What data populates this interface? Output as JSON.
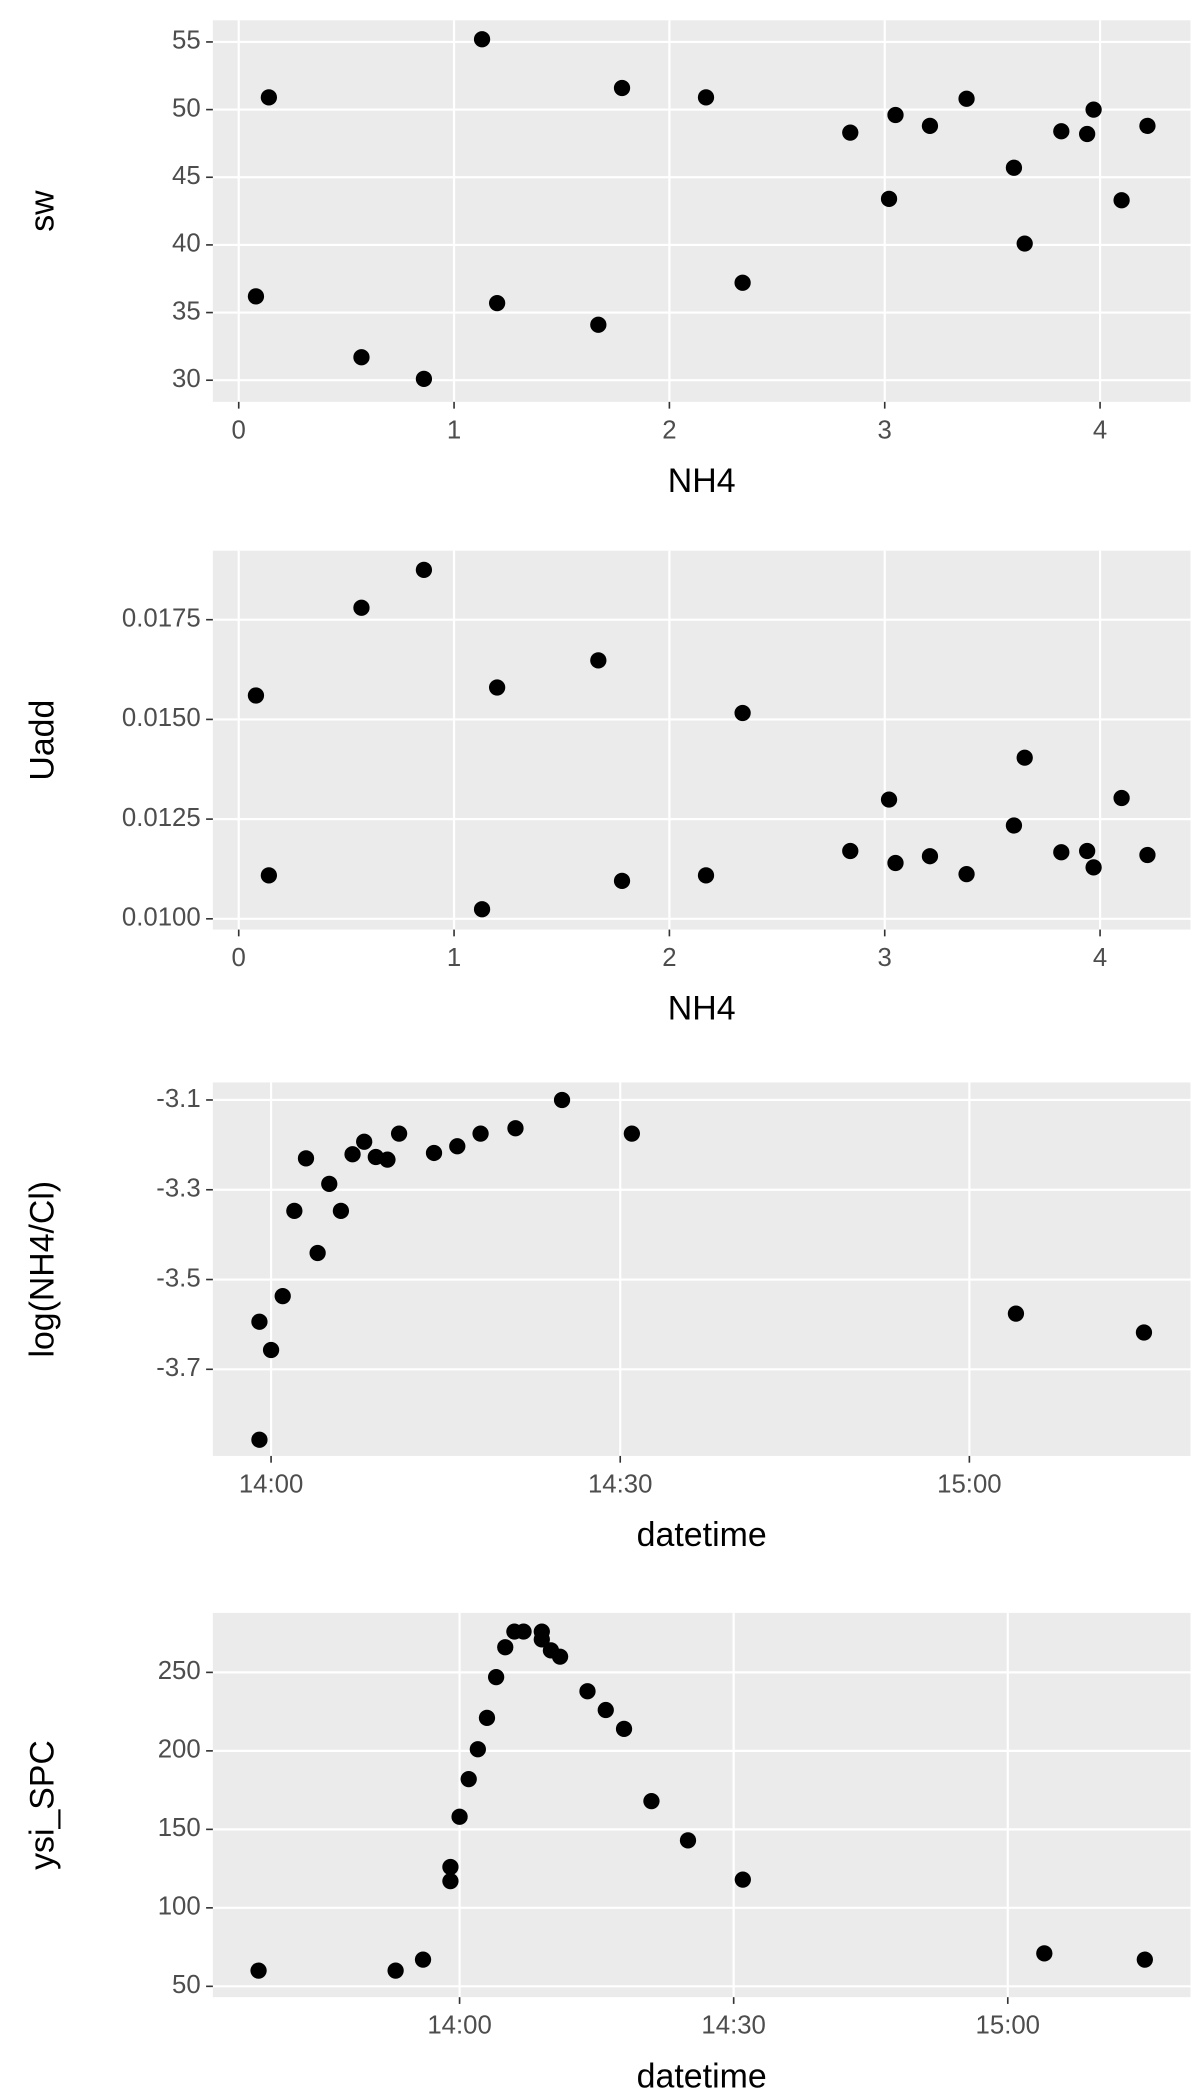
{
  "chart_data": [
    {
      "type": "scatter",
      "x_label": "NH4",
      "y_label": "sw",
      "grid": true,
      "color": "#000000",
      "x": [
        0.08,
        0.14,
        0.57,
        0.86,
        1.13,
        1.2,
        1.67,
        1.78,
        2.17,
        2.34,
        2.84,
        3.02,
        3.05,
        3.21,
        3.38,
        3.6,
        3.65,
        3.82,
        3.94,
        3.97,
        4.1,
        4.22
      ],
      "values": [
        36.2,
        50.9,
        31.7,
        30.1,
        55.2,
        35.7,
        34.1,
        51.6,
        50.9,
        37.2,
        48.3,
        43.4,
        49.6,
        48.8,
        50.8,
        45.7,
        40.1,
        48.4,
        48.2,
        50.0,
        43.3,
        48.8
      ],
      "xlim": [
        -0.12,
        4.42
      ],
      "xticks": [
        0,
        1,
        2,
        3,
        4
      ],
      "ylim": [
        28.4,
        56.6
      ],
      "yticks": [
        30,
        35,
        40,
        45,
        50,
        55
      ]
    },
    {
      "type": "scatter",
      "x_label": "NH4",
      "y_label": "Uadd",
      "grid": true,
      "color": "#000000",
      "x": [
        0.08,
        0.14,
        0.57,
        0.86,
        1.13,
        1.2,
        1.67,
        1.78,
        2.17,
        2.34,
        2.84,
        3.02,
        3.05,
        3.21,
        3.38,
        3.6,
        3.65,
        3.82,
        3.94,
        3.97,
        4.1,
        4.22
      ],
      "values": [
        0.0156,
        0.01109,
        0.0178,
        0.01875,
        0.01024,
        0.0158,
        0.01648,
        0.01095,
        0.01109,
        0.01516,
        0.0117,
        0.01299,
        0.0114,
        0.01157,
        0.01112,
        0.01234,
        0.01404,
        0.01167,
        0.0117,
        0.01129,
        0.01303,
        0.0116
      ],
      "xlim": [
        -0.12,
        4.42
      ],
      "xticks": [
        0,
        1,
        2,
        3,
        4
      ],
      "ylim": [
        0.00973,
        0.01923
      ],
      "yticks": [
        {
          "value": 0.01,
          "label": "0.0100"
        },
        {
          "value": 0.0125,
          "label": "0.0125"
        },
        {
          "value": 0.015,
          "label": "0.0150"
        },
        {
          "value": 0.0175,
          "label": "0.0175"
        }
      ]
    },
    {
      "type": "scatter",
      "x_label": "datetime",
      "y_label": "log(NH4/Cl)",
      "grid": true,
      "color": "#000000",
      "x": [
        "13:59",
        "13:59",
        "14:00",
        "14:01",
        "14:02",
        "14:03",
        "14:04",
        "14:05",
        "14:06",
        "14:07",
        "14:08",
        "14:09",
        "14:10",
        "14:11",
        "14:14",
        "14:16",
        "14:18",
        "14:21",
        "14:25",
        "14:31",
        "15:04",
        "15:15"
      ],
      "values": [
        -3.857,
        -3.594,
        -3.657,
        -3.537,
        -3.347,
        -3.23,
        -3.441,
        -3.287,
        -3.347,
        -3.221,
        -3.193,
        -3.227,
        -3.233,
        -3.175,
        -3.218,
        -3.203,
        -3.175,
        -3.163,
        -3.1,
        -3.175,
        -3.576,
        -3.618
      ],
      "xlim": [
        "13:55",
        "15:19"
      ],
      "xticks": [
        "14:00",
        "14:30",
        "15:00"
      ],
      "ylim": [
        -3.893,
        -3.061
      ],
      "yticks": [
        -3.1,
        -3.3,
        -3.5,
        -3.7
      ]
    },
    {
      "type": "scatter",
      "x_label": "datetime",
      "y_label": "ysi_SPC",
      "grid": true,
      "color": "#000000",
      "x": [
        "13:38",
        "13:53",
        "13:56",
        "13:59",
        "13:59",
        "14:00",
        "14:01",
        "14:02",
        "14:03",
        "14:04",
        "14:05",
        "14:06",
        "14:07",
        "14:09",
        "14:09",
        "14:10",
        "14:11",
        "14:14",
        "14:16",
        "14:18",
        "14:21",
        "14:25",
        "14:31",
        "15:04",
        "15:15"
      ],
      "values": [
        60,
        60,
        67,
        117,
        126,
        158,
        182,
        201,
        221,
        247,
        266,
        276,
        276,
        276,
        271,
        264,
        260,
        238,
        226,
        214,
        168,
        143,
        118,
        71,
        67
      ],
      "xlim": [
        "13:33",
        "15:20"
      ],
      "xticks": [
        "14:00",
        "14:30",
        "15:00"
      ],
      "ylim": [
        43.1,
        287.9
      ],
      "yticks": [
        50,
        100,
        150,
        200,
        250
      ]
    }
  ]
}
